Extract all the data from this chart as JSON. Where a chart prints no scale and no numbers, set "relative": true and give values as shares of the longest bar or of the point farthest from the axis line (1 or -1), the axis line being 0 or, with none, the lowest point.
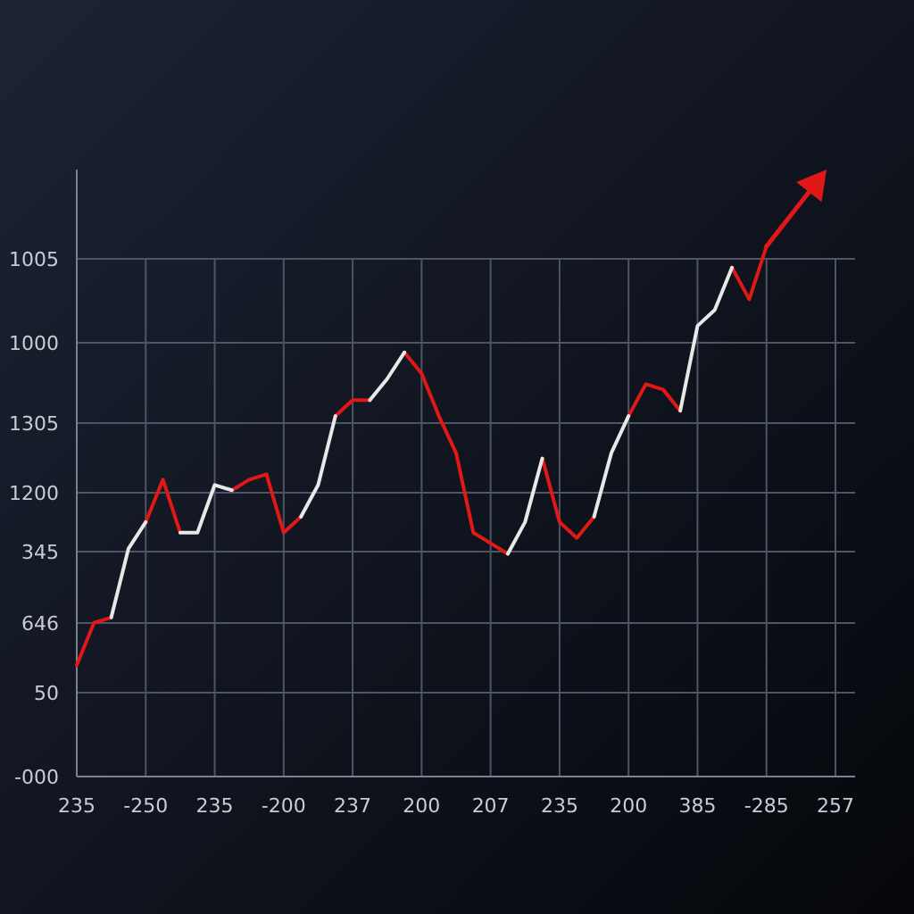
{
  "chart_data": {
    "type": "line",
    "relative": true,
    "grid": true,
    "line_style": "solid",
    "categories": [
      "235",
      null,
      null,
      null,
      "-250",
      null,
      null,
      null,
      "235",
      null,
      null,
      null,
      "-200",
      null,
      null,
      null,
      "237",
      null,
      null,
      null,
      "200",
      null,
      null,
      null,
      "207",
      null,
      null,
      null,
      "235",
      null,
      null,
      null,
      "200",
      null,
      null,
      null,
      "385",
      null,
      null,
      null,
      "-285",
      null,
      null,
      null,
      "257"
    ],
    "annotations": [
      "1005",
      "1000",
      "1305",
      "1200",
      "345",
      "646",
      "50",
      "-000"
    ],
    "series": [
      {
        "color": "#e01818",
        "values": [
          0.21,
          0.29,
          0.3,
          null,
          0.48,
          0.56,
          0.46,
          null,
          null,
          0.54,
          0.56,
          0.57,
          0.46,
          0.49,
          null,
          0.68,
          0.71,
          0.71,
          null,
          0.8,
          0.76,
          0.68,
          0.61,
          0.46,
          0.44,
          0.42,
          null,
          0.6,
          0.48,
          0.45,
          0.49,
          null,
          0.68,
          0.74,
          0.73,
          0.69,
          null,
          null,
          0.96,
          0.9,
          1,
          null,
          null,
          null,
          null
        ]
      },
      {
        "color": "#e8e8e8",
        "values": [
          null,
          null,
          0.3,
          0.43,
          0.48,
          null,
          0.46,
          0.46,
          0.55,
          0.54,
          null,
          null,
          null,
          0.49,
          0.55,
          0.68,
          null,
          0.71,
          0.75,
          0.8,
          null,
          null,
          null,
          null,
          null,
          0.42,
          0.48,
          0.6,
          null,
          null,
          0.49,
          0.61,
          0.68,
          null,
          null,
          0.69,
          0.85,
          0.88,
          0.96,
          null,
          null,
          null,
          null,
          null,
          null
        ]
      }
    ]
  }
}
